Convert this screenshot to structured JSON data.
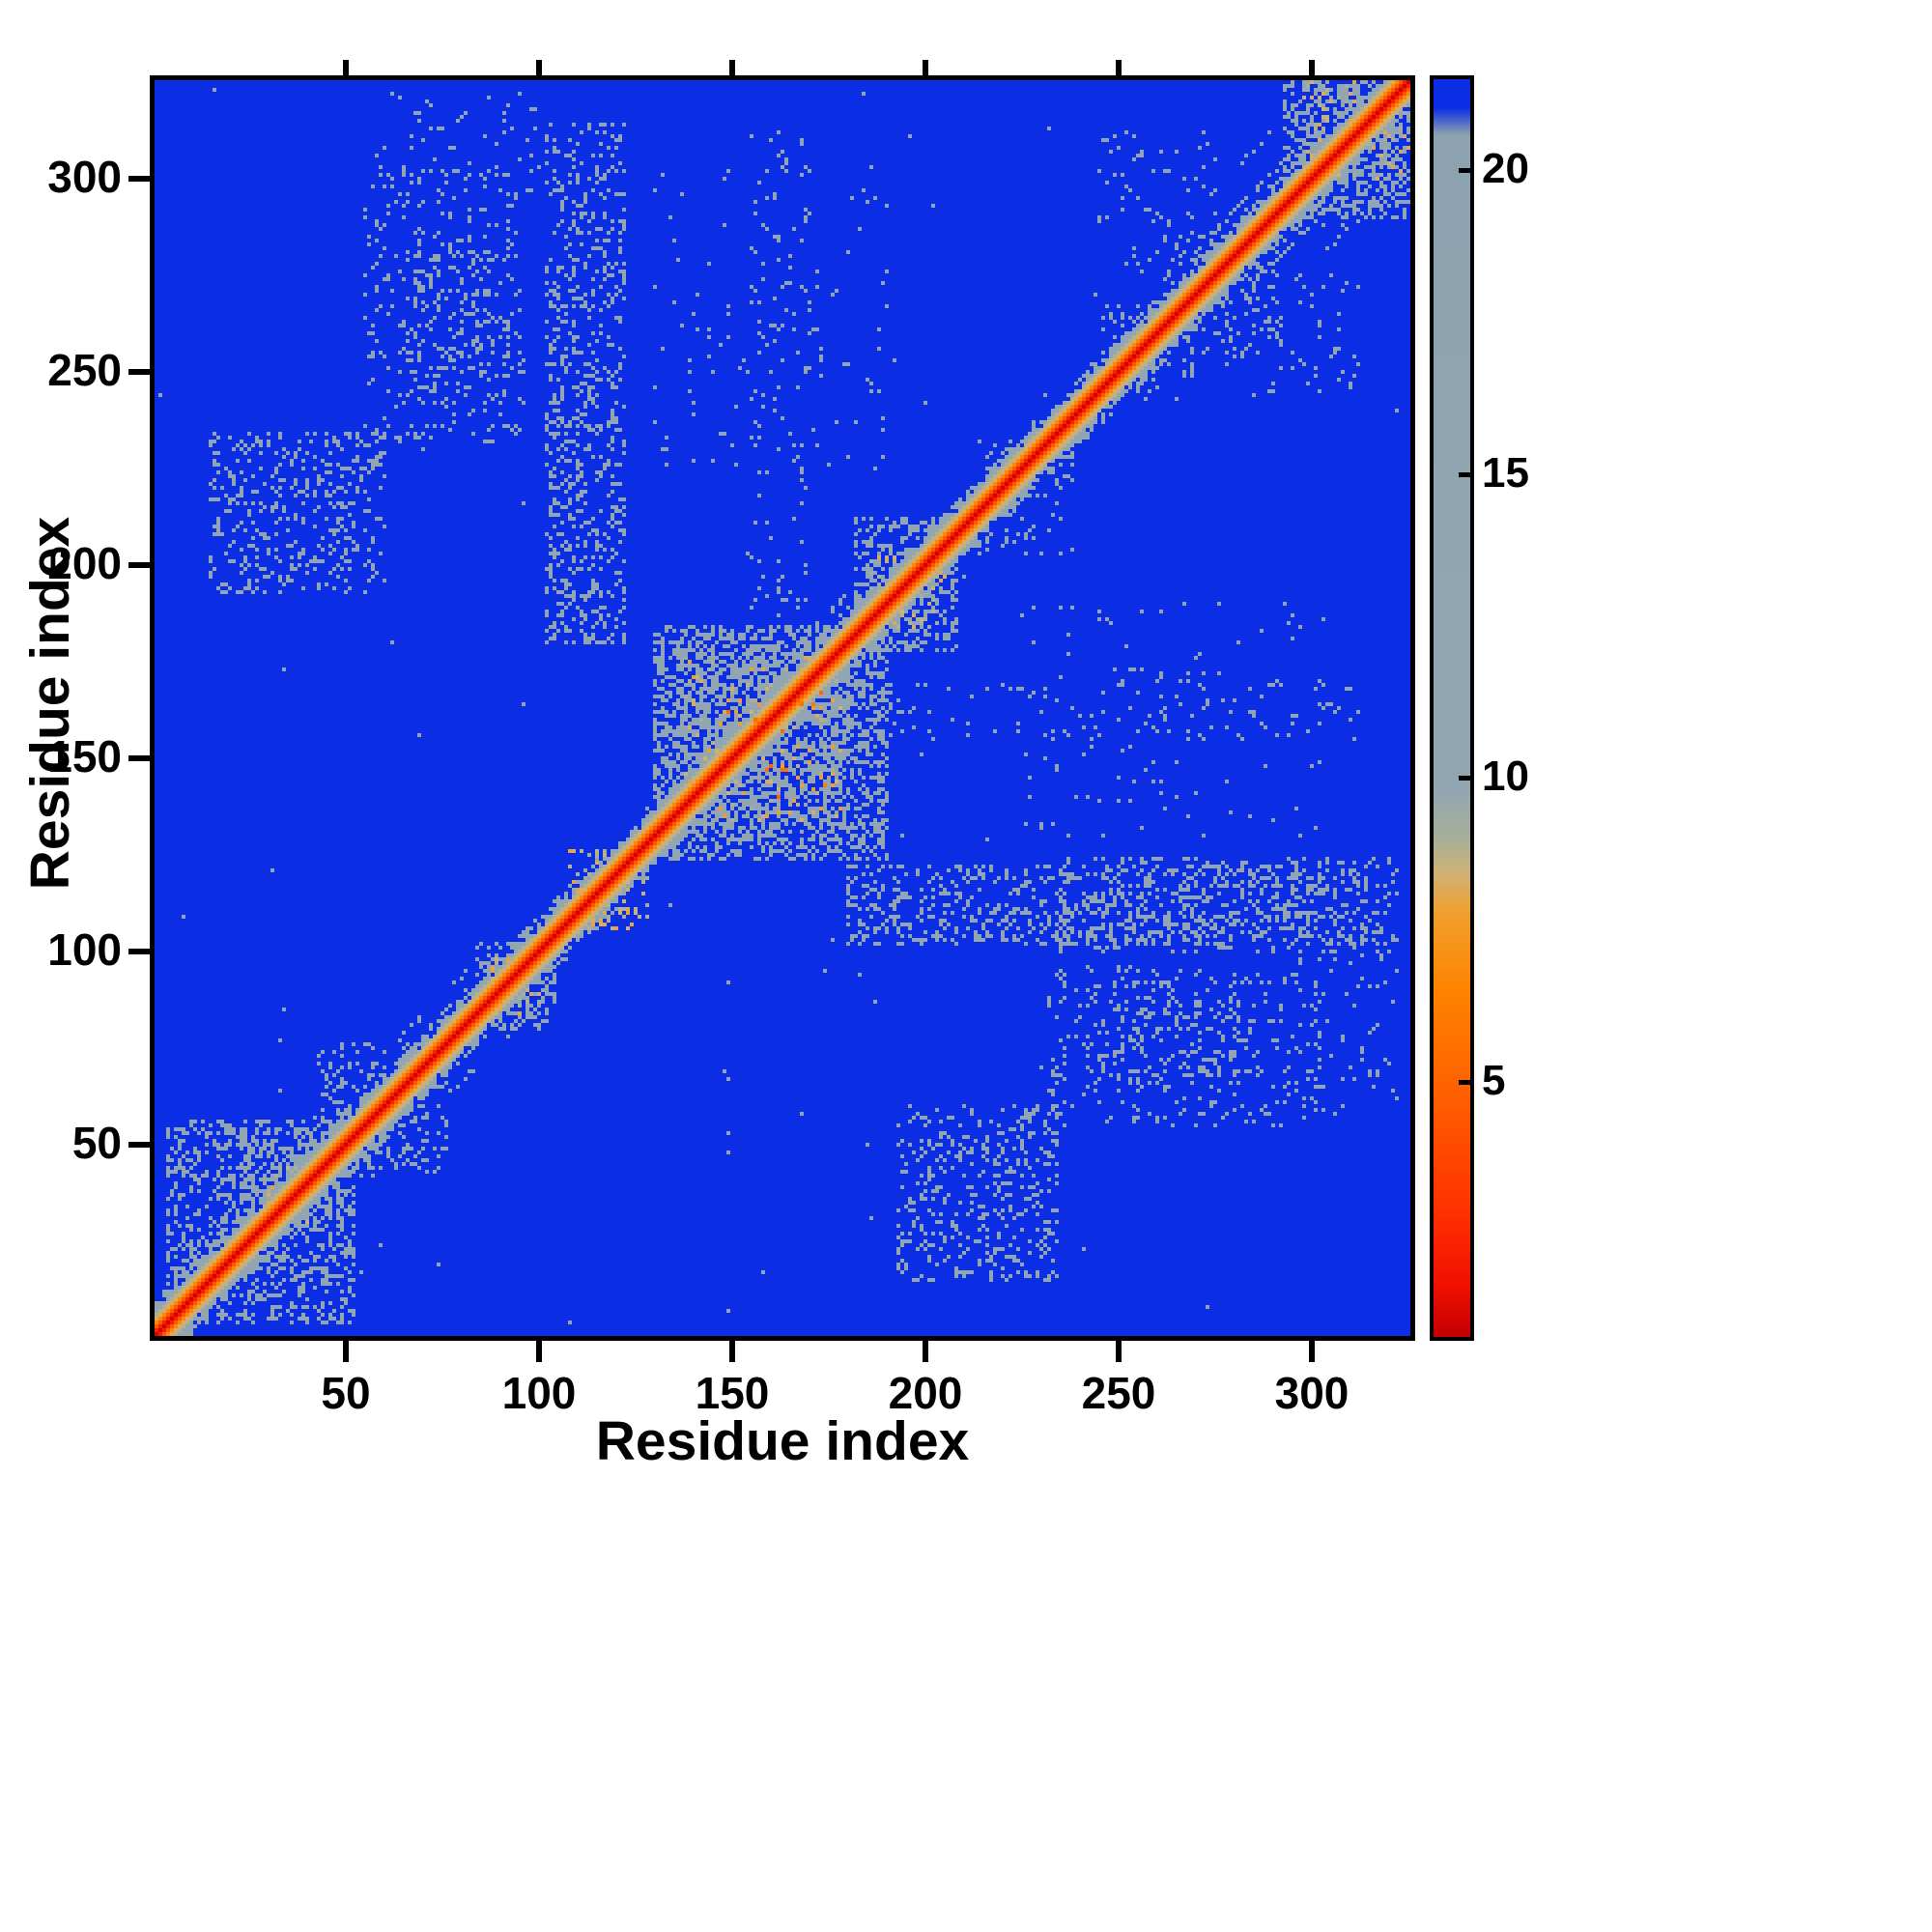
{
  "figure": {
    "background": "#ffffff"
  },
  "chart_data": {
    "type": "heatmap",
    "title": "",
    "xlabel": "Residue index",
    "ylabel": "Residue index",
    "n": 325,
    "x_range": [
      1,
      325
    ],
    "y_range": [
      1,
      325
    ],
    "x_ticks": [
      50,
      100,
      150,
      200,
      250,
      300
    ],
    "y_ticks": [
      50,
      100,
      150,
      200,
      250,
      300
    ],
    "grid": false,
    "legend": "none",
    "colorbar": {
      "min": 0.8,
      "max": 21.5,
      "ticks": [
        5,
        10,
        15,
        20
      ],
      "position": "right"
    },
    "background_value": 22,
    "seed": 1337,
    "colors": {
      "background_blue": "#0b2de4",
      "cluster_gray": "#8ea3b1",
      "diagonal_red": "#f01000",
      "fringe_orange": "#ff7000",
      "axis": "#000000"
    },
    "colormap": [
      [
        0.8,
        "#c40000"
      ],
      [
        1.6,
        "#f01000"
      ],
      [
        2.8,
        "#ff3000"
      ],
      [
        4.5,
        "#ff5a00"
      ],
      [
        6.5,
        "#ff8400"
      ],
      [
        7.8,
        "#f0a030"
      ],
      [
        8.4,
        "#d2b274"
      ],
      [
        9.0,
        "#a8b09a"
      ],
      [
        9.8,
        "#93a7b3"
      ],
      [
        20.6,
        "#8da2b0"
      ],
      [
        21.05,
        "#0b2de4"
      ],
      [
        22.5,
        "#0b2de4"
      ]
    ],
    "diagonal_profile": [
      [
        0,
        1.0
      ],
      [
        1,
        2.2
      ],
      [
        2,
        4.5
      ],
      [
        3,
        6.8
      ],
      [
        4,
        8.2
      ],
      [
        5,
        8.8
      ]
    ],
    "diagonal_gray_band": {
      "width": 9,
      "inner": 5,
      "value": 12.5,
      "falloff": [
        0.85,
        0.6,
        0.38,
        0.2
      ]
    },
    "clusters": [
      {
        "x": [
          4,
          52
        ],
        "y": [
          4,
          56
        ],
        "p": 0.3,
        "v": 12.5,
        "mirror": false
      },
      {
        "x": [
          24,
          46
        ],
        "y": [
          28,
          50
        ],
        "p": 0.22,
        "v": 12.0,
        "mirror": false
      },
      {
        "x": [
          30,
          42
        ],
        "y": [
          30,
          44
        ],
        "p": 0.1,
        "v": 8.6,
        "mirror": false
      },
      {
        "x": [
          46,
          76
        ],
        "y": [
          42,
          72
        ],
        "p": 0.1,
        "v": 12.5,
        "mirror": true
      },
      {
        "x": [
          84,
          104
        ],
        "y": [
          80,
          102
        ],
        "p": 0.28,
        "v": 12.0,
        "mirror": false
      },
      {
        "x": [
          88,
          100
        ],
        "y": [
          84,
          98
        ],
        "p": 0.12,
        "v": 8.5,
        "mirror": false
      },
      {
        "x": [
          108,
          128
        ],
        "y": [
          106,
          126
        ],
        "p": 0.18,
        "v": 8.6,
        "mirror": false
      },
      {
        "x": [
          130,
          190
        ],
        "y": [
          124,
          184
        ],
        "p": 0.4,
        "v": 12.5,
        "mirror": false
      },
      {
        "x": [
          136,
          180
        ],
        "y": [
          132,
          178
        ],
        "p": 0.3,
        "v": 12.0,
        "mirror": false
      },
      {
        "x": [
          138,
          178
        ],
        "y": [
          134,
          176
        ],
        "p": 0.07,
        "v": 8.4,
        "mirror": false
      },
      {
        "x": [
          142,
          174
        ],
        "y": [
          140,
          172
        ],
        "p": 0.015,
        "v": 5.5,
        "mirror": false
      },
      {
        "x": [
          182,
          208
        ],
        "y": [
          178,
          212
        ],
        "p": 0.3,
        "v": 12.5,
        "mirror": false
      },
      {
        "x": [
          186,
          206
        ],
        "y": [
          184,
          204
        ],
        "p": 0.15,
        "v": 8.8,
        "mirror": false
      },
      {
        "x": [
          293,
          325
        ],
        "y": [
          290,
          325
        ],
        "p": 0.38,
        "v": 12.3,
        "mirror": false
      },
      {
        "x": [
          298,
          325
        ],
        "y": [
          300,
          325
        ],
        "p": 0.15,
        "v": 8.8,
        "mirror": false
      },
      {
        "x": [
          102,
          122
        ],
        "y": [
          180,
          314
        ],
        "p": 0.2,
        "v": 12.5,
        "mirror": true
      },
      {
        "x": [
          66,
          92
        ],
        "y": [
          242,
          284
        ],
        "p": 0.11,
        "v": 12.5,
        "mirror": true
      },
      {
        "x": [
          15,
          60
        ],
        "y": [
          193,
          234
        ],
        "p": 0.2,
        "v": 12.5,
        "mirror": true
      },
      {
        "x": [
          230,
          306
        ],
        "y": [
          55,
          96
        ],
        "p": 0.09,
        "v": 12.5,
        "mirror": true
      },
      {
        "x": [
          235,
          322
        ],
        "y": [
          100,
          124
        ],
        "p": 0.16,
        "v": 12.5,
        "mirror": false
      },
      {
        "x": [
          130,
          190
        ],
        "y": [
          222,
          306
        ],
        "p": 0.02,
        "v": 12.5,
        "mirror": true
      },
      {
        "x": [
          186,
          312
        ],
        "y": [
          155,
          170
        ],
        "p": 0.05,
        "v": 12.5,
        "mirror": true
      },
      {
        "x": [
          212,
          238
        ],
        "y": [
          203,
          232
        ],
        "p": 0.12,
        "v": 12.5,
        "mirror": false
      },
      {
        "x": [
          246,
          270
        ],
        "y": [
          243,
          267
        ],
        "p": 0.13,
        "v": 12.5,
        "mirror": false
      },
      {
        "x": [
          262,
          292
        ],
        "y": [
          255,
          286
        ],
        "p": 0.1,
        "v": 12.5,
        "mirror": false
      },
      {
        "x": [
          245,
          278
        ],
        "y": [
          278,
          312
        ],
        "p": 0.05,
        "v": 12.5,
        "mirror": true
      },
      {
        "x": [
          60,
          100
        ],
        "y": [
          296,
          322
        ],
        "p": 0.04,
        "v": 12.5,
        "mirror": true
      },
      {
        "x": [
          1,
          325
        ],
        "y": [
          1,
          325
        ],
        "p": 0.0008,
        "v": 12.5,
        "mirror": false
      }
    ],
    "diag_streaks": [
      {
        "offset": 12,
        "range": [
          18,
          64
        ],
        "p": 0.55
      },
      {
        "offset": 13,
        "range": [
          70,
          102
        ],
        "p": 0.5
      },
      {
        "offset": 12,
        "range": [
          176,
          210
        ],
        "p": 0.55
      },
      {
        "offset": 11,
        "range": [
          286,
          325
        ],
        "p": 0.5
      },
      {
        "offset": 22,
        "range": [
          285,
          318
        ],
        "p": 0.3
      }
    ]
  }
}
